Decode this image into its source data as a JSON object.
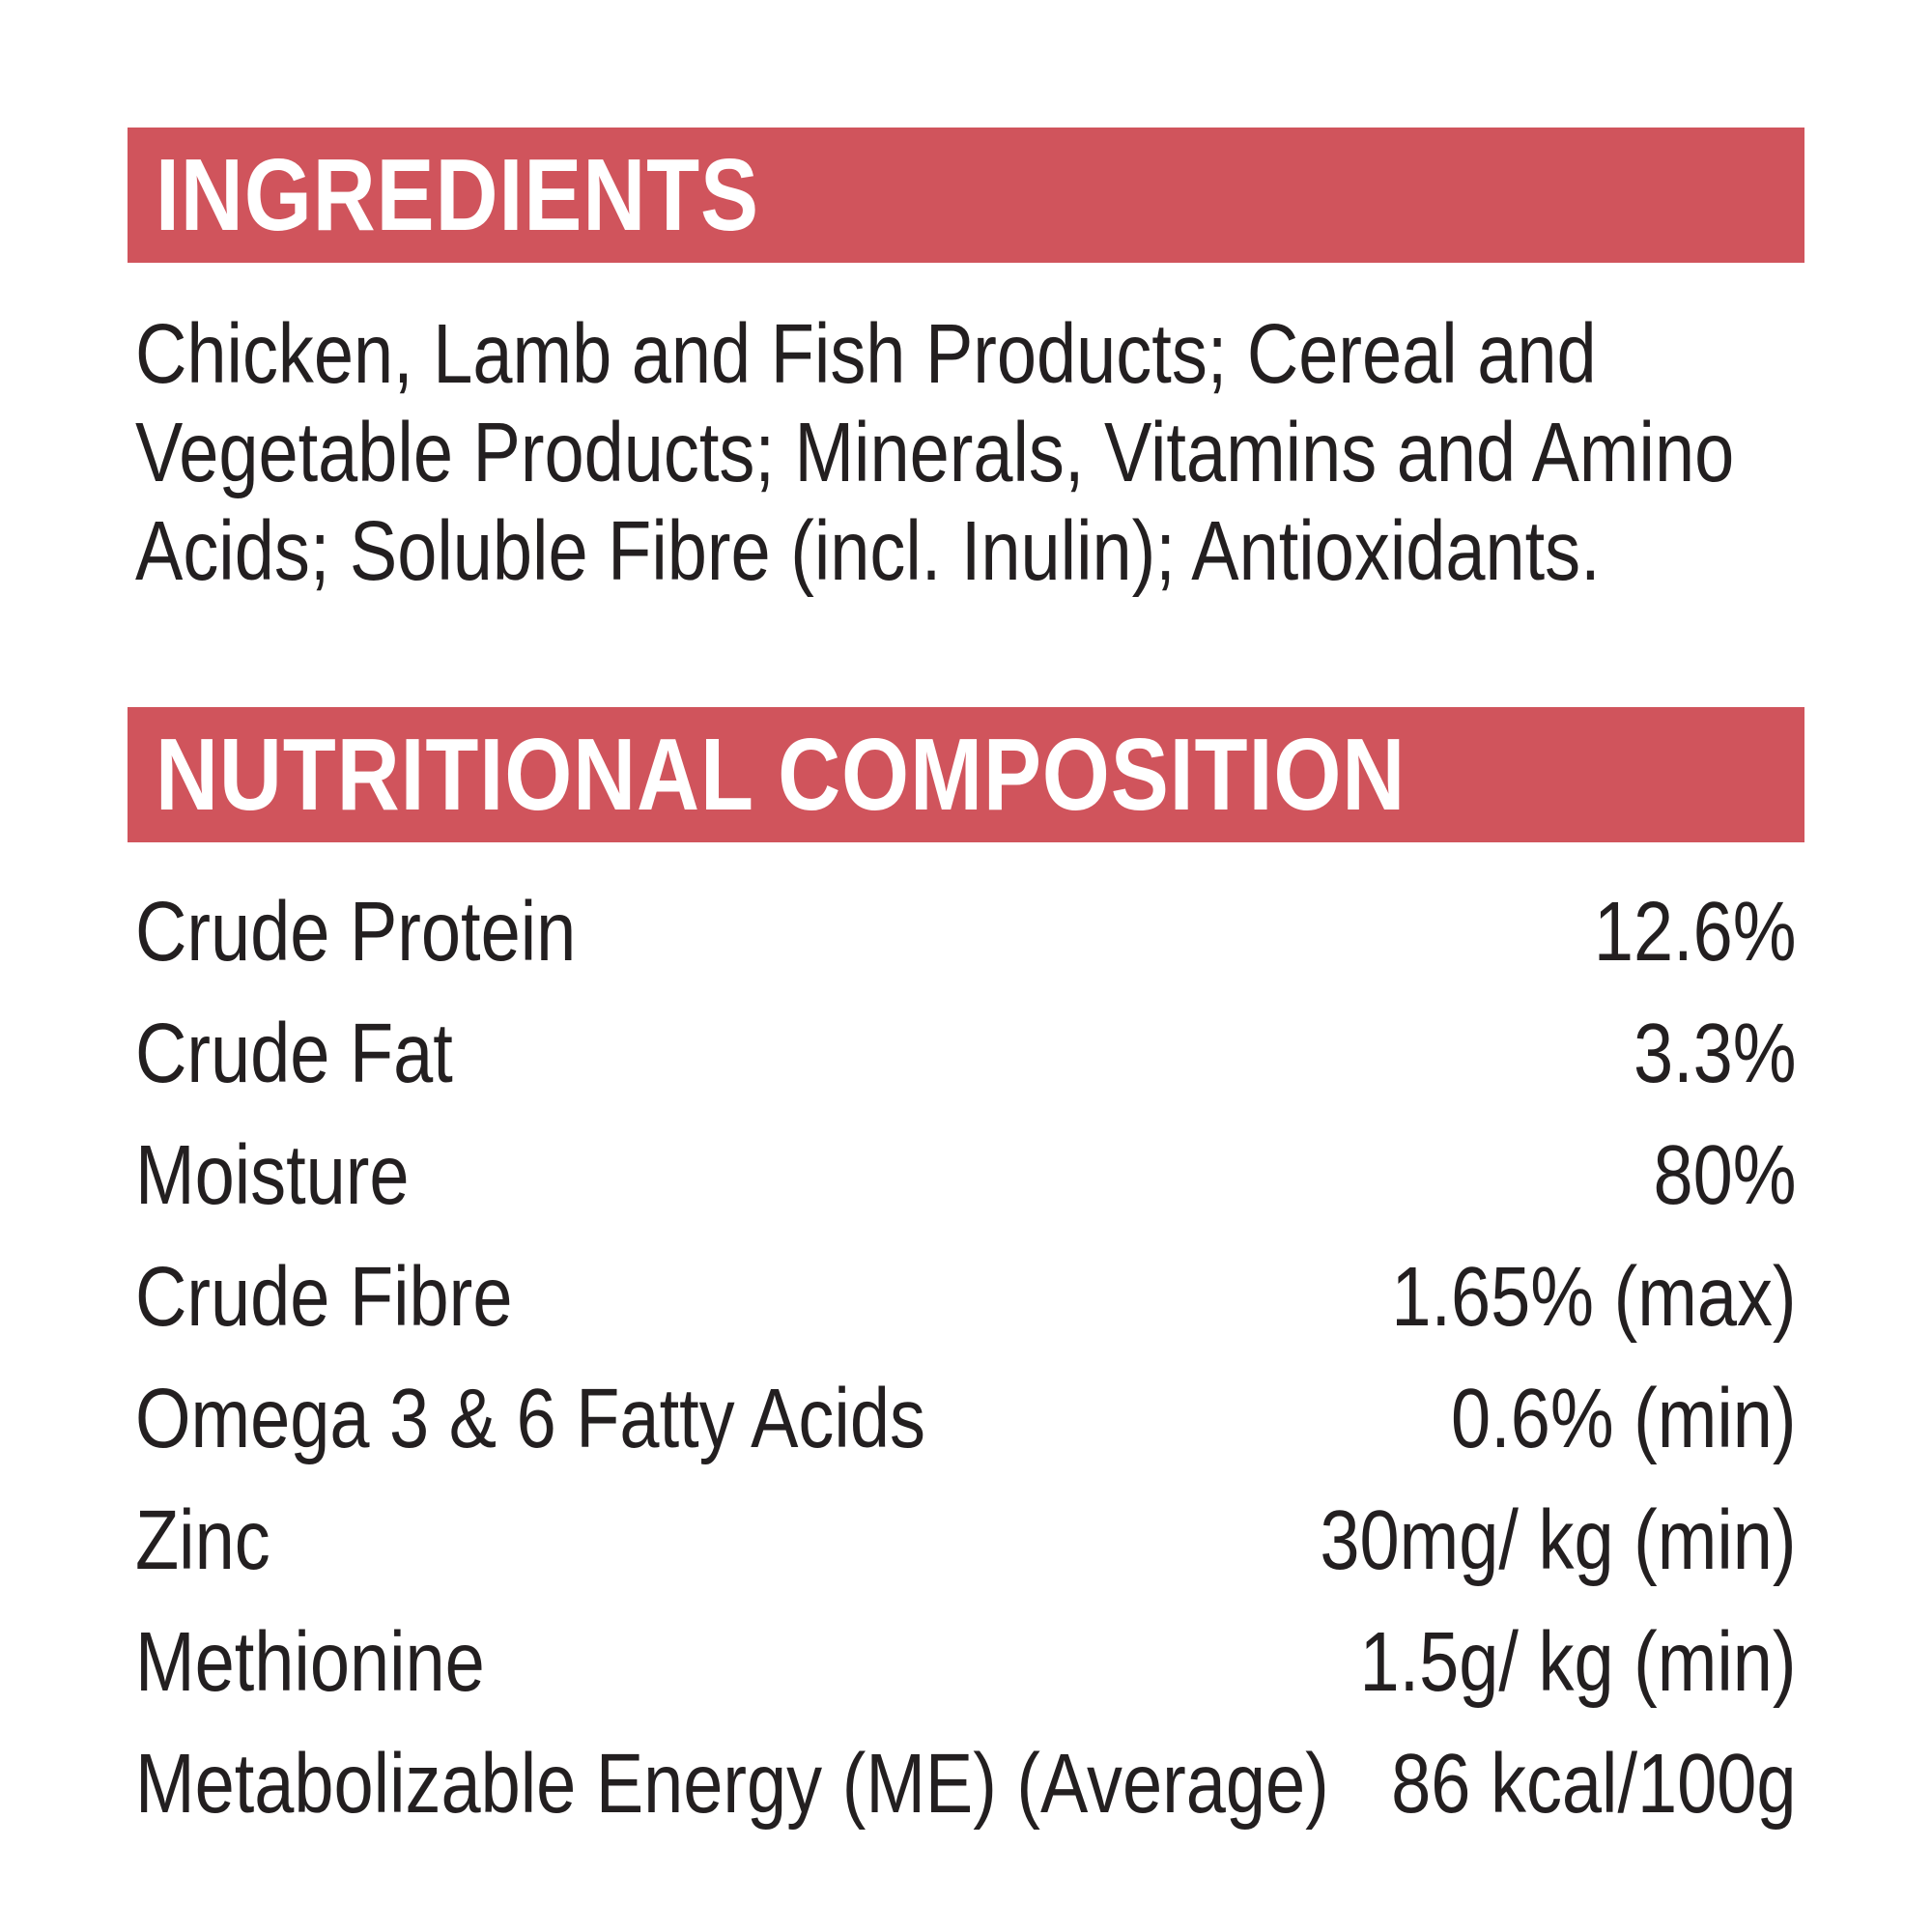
{
  "colors": {
    "accent_red": "#d0545c",
    "text_black": "#231f20",
    "background": "#ffffff"
  },
  "ingredients": {
    "title": "INGREDIENTS",
    "lines": [
      "Chicken, Lamb and Fish Products; Cereal and",
      "Vegetable Products; Minerals, Vitamins and Amino",
      "Acids; Soluble Fibre (incl. Inulin); Antioxidants."
    ]
  },
  "nutrition": {
    "title": "NUTRITIONAL COMPOSITION",
    "rows": [
      {
        "label": "Crude Protein",
        "value": "12.6%"
      },
      {
        "label": "Crude Fat",
        "value": "3.3%"
      },
      {
        "label": "Moisture",
        "value": "80%"
      },
      {
        "label": "Crude Fibre",
        "value": "1.65% (max)"
      },
      {
        "label": "Omega 3 & 6 Fatty Acids",
        "value": "0.6% (min)"
      },
      {
        "label": "Zinc",
        "value": "30mg/ kg (min)"
      },
      {
        "label": "Methionine",
        "value": "1.5g/ kg (min)"
      },
      {
        "label": "Metabolizable Energy (ME) (Average)",
        "value": "86 kcal/100g"
      }
    ]
  }
}
